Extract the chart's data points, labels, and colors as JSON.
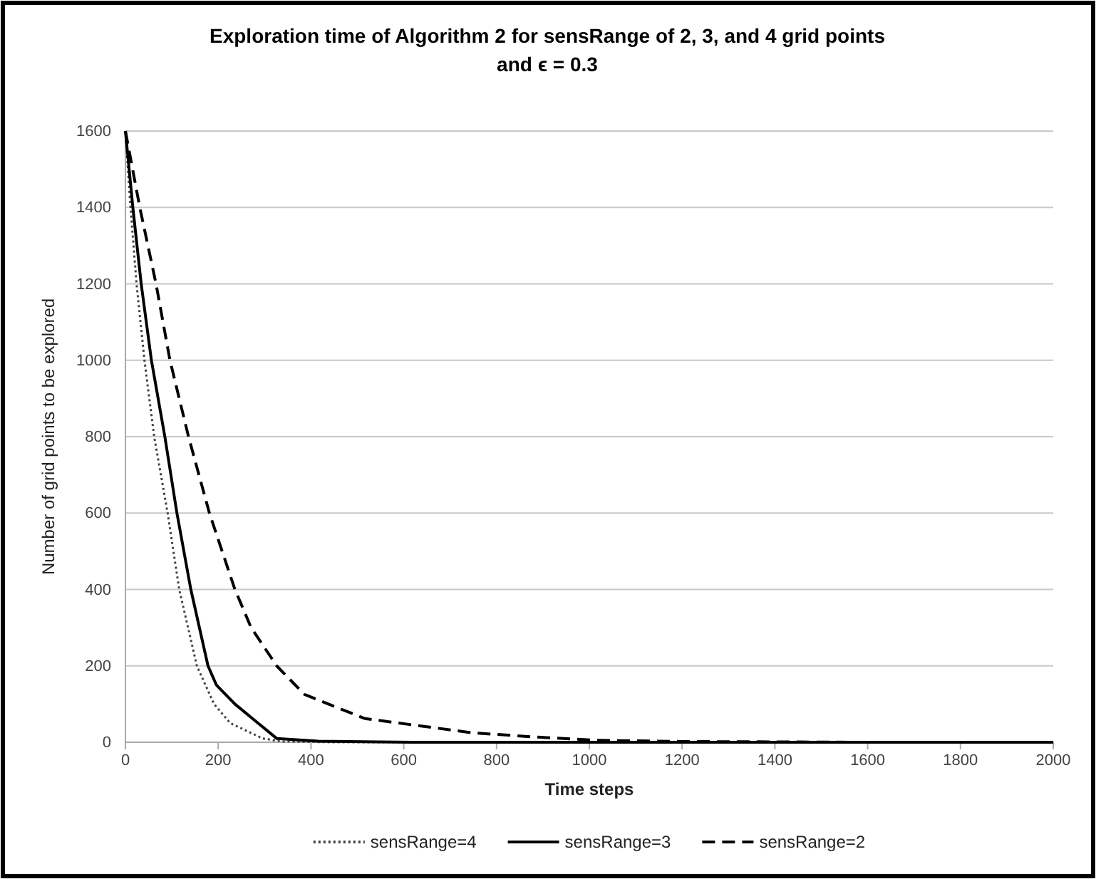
{
  "chart_data": {
    "type": "line",
    "title": "Exploration time of Algorithm 2 for sensRange of 2, 3, and 4 grid points\nand ϵ = 0.3",
    "xlabel": "Time steps",
    "ylabel": "Number of grid points to be explored",
    "xlim": [
      0,
      2000
    ],
    "xticks": [
      0,
      200,
      400,
      600,
      800,
      1000,
      1200,
      1400,
      1600,
      1800,
      2000
    ],
    "ylim": [
      0,
      1600
    ],
    "yticks": [
      0,
      200,
      400,
      600,
      800,
      1000,
      1200,
      1400,
      1600
    ],
    "grid": "y",
    "legend": "bottom",
    "marker": "none",
    "series": [
      {
        "name": "sensRange=4",
        "color": "#444444",
        "line_style": "dotted",
        "x": [
          0,
          11,
          24,
          41,
          62,
          91,
          116,
          154,
          191,
          226,
          296,
          336,
          450,
          2000
        ],
        "values": [
          1600,
          1400,
          1200,
          1000,
          800,
          600,
          400,
          200,
          100,
          50,
          10,
          2,
          0,
          0
        ]
      },
      {
        "name": "sensRange=3",
        "color": "#000000",
        "line_style": "solid",
        "x": [
          0,
          16,
          34,
          56,
          85,
          111,
          141,
          178,
          196,
          236,
          286,
          326,
          416,
          616,
          2000
        ],
        "values": [
          1600,
          1400,
          1200,
          1000,
          800,
          600,
          400,
          200,
          150,
          100,
          50,
          10,
          3,
          0,
          0
        ]
      },
      {
        "name": "sensRange=2",
        "color": "#000000",
        "line_style": "dashed",
        "x": [
          0,
          31,
          66,
          96,
          136,
          181,
          236,
          271,
          326,
          386,
          516,
          746,
          866,
          1016,
          1200,
          1600,
          2000
        ],
        "values": [
          1600,
          1400,
          1200,
          1000,
          800,
          600,
          400,
          300,
          200,
          125,
          62,
          25,
          15,
          5,
          2,
          0,
          0
        ]
      }
    ]
  }
}
